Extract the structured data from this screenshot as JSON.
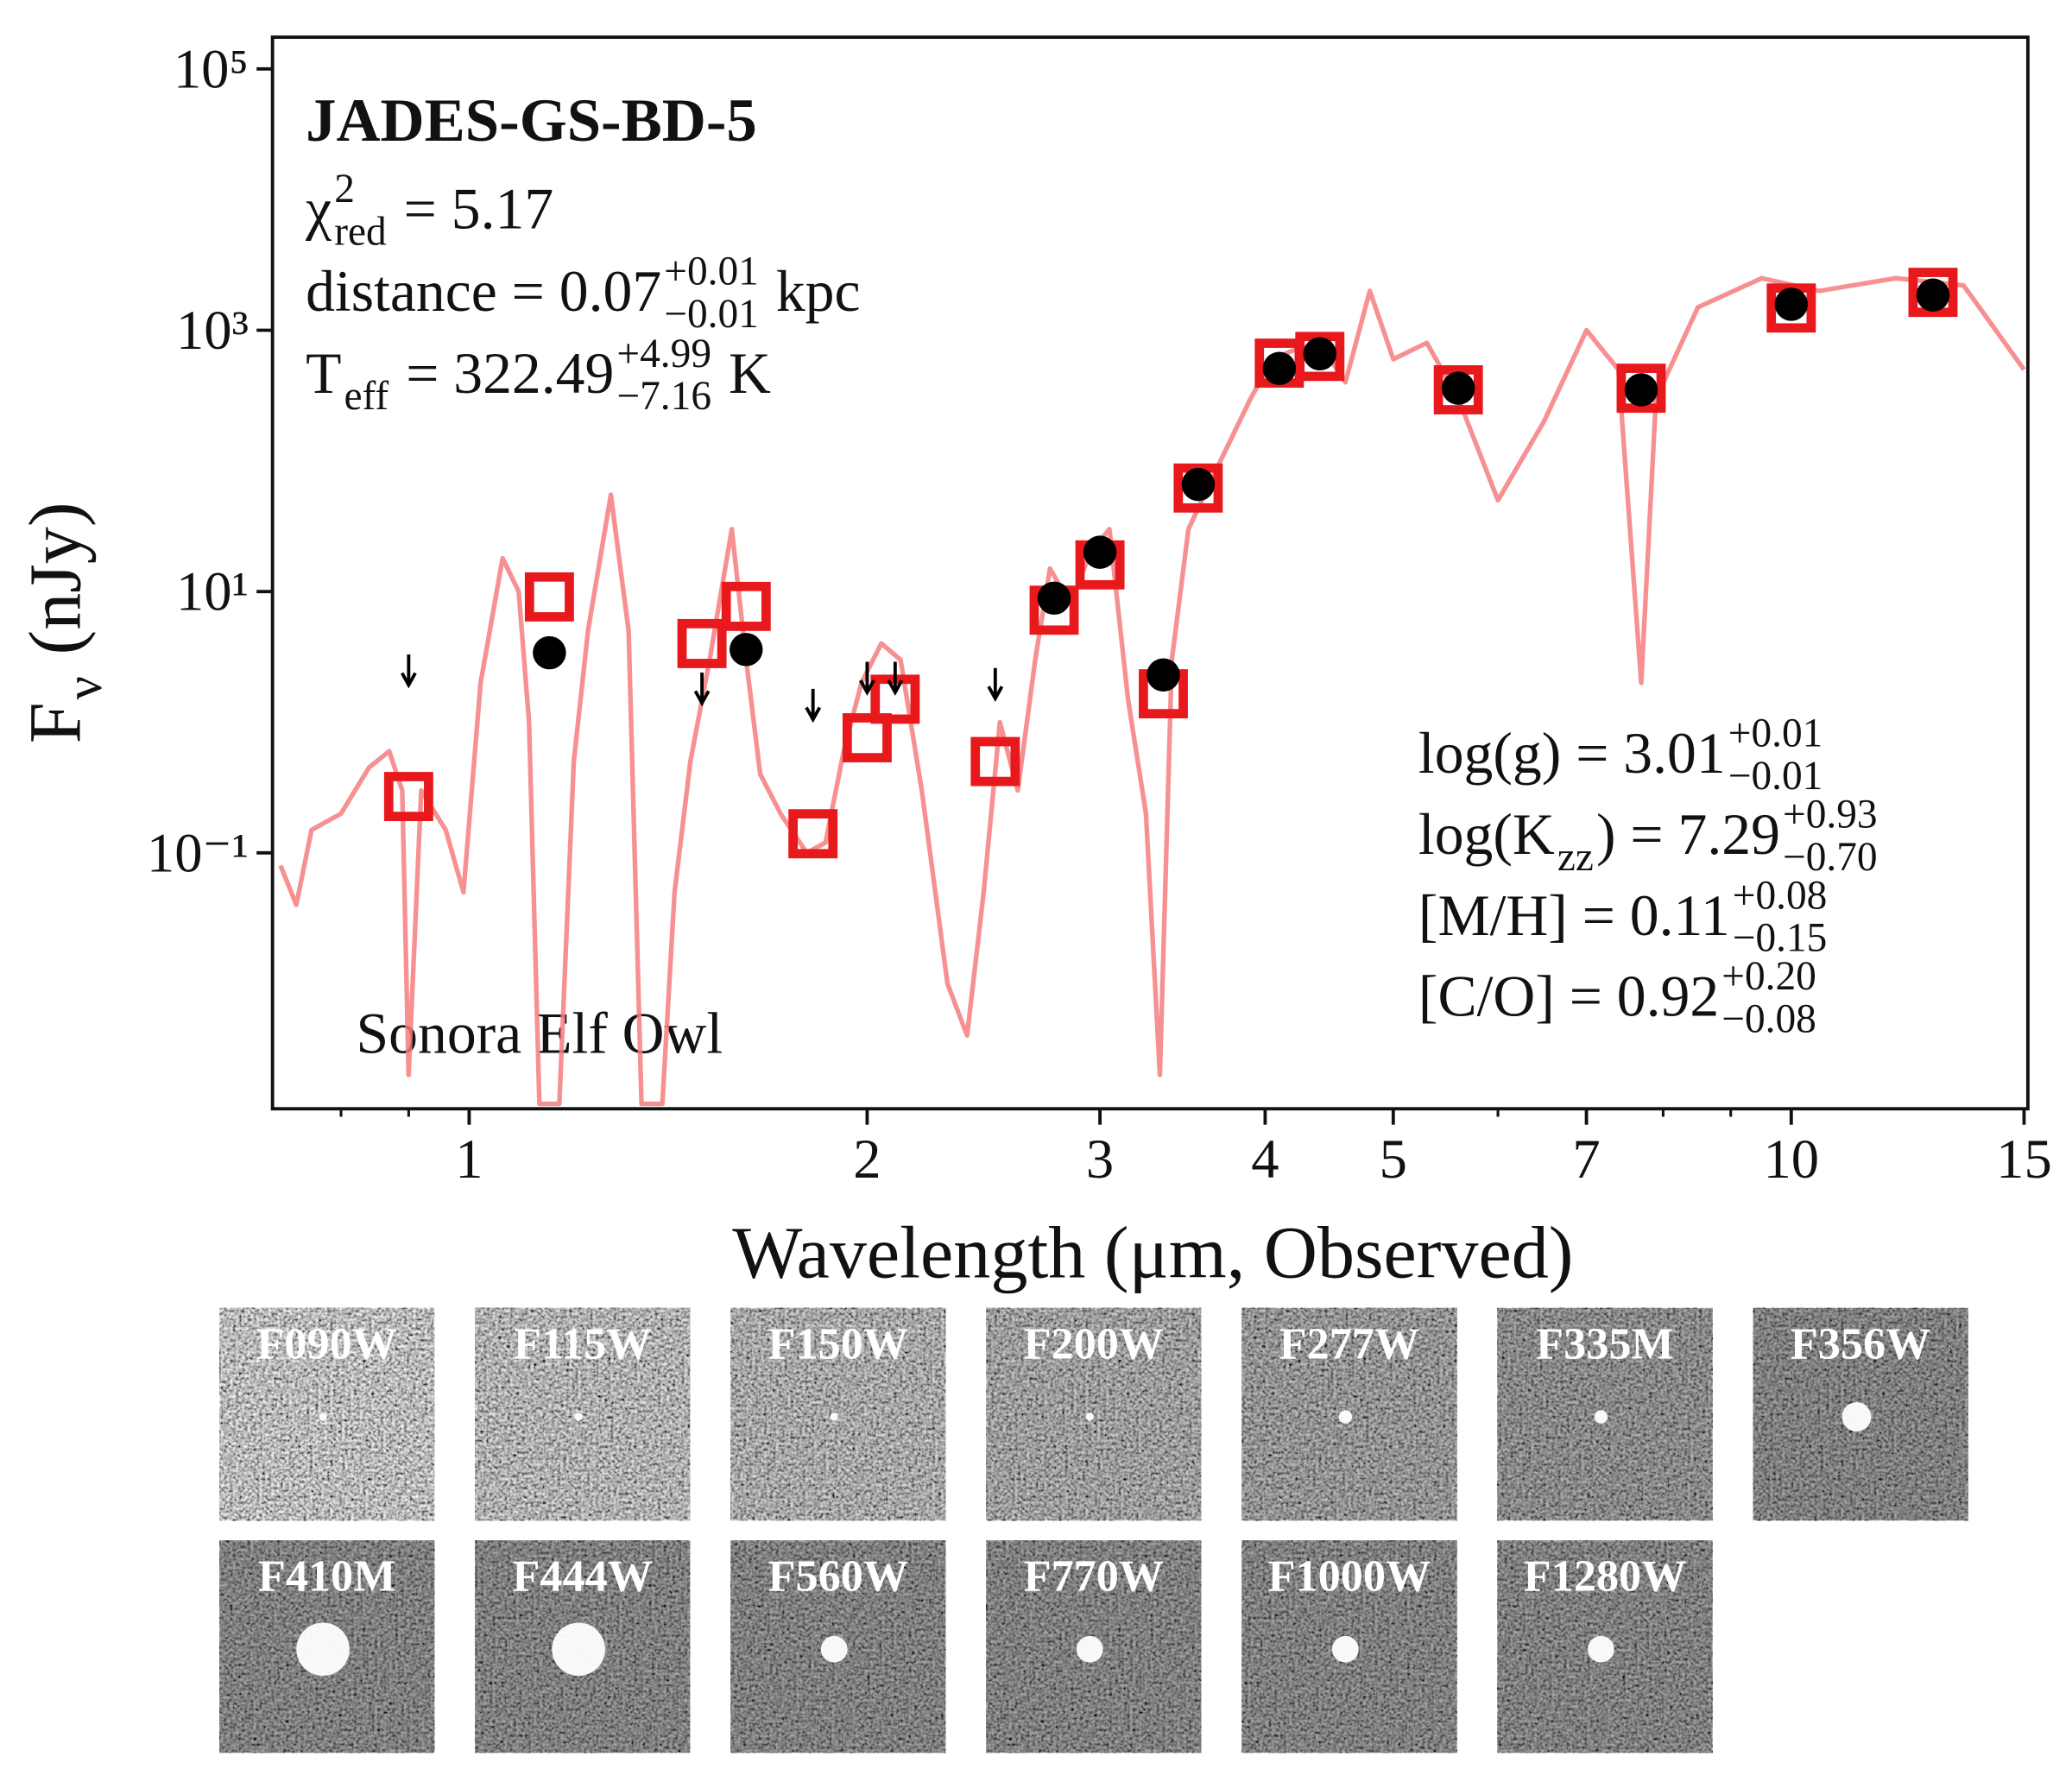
{
  "chart_data": {
    "type": "scatter",
    "xlog": true,
    "ylog": true,
    "xlim": [
      0.71,
      15.1
    ],
    "ylim": [
      0.0011,
      175000
    ],
    "xticks": [
      1,
      2,
      3,
      4,
      5,
      7,
      10,
      15
    ],
    "xminorticks": [
      0.8,
      0.9,
      6,
      8,
      9
    ],
    "yticks": [
      {
        "value": 0.1,
        "label": "10⁻¹"
      },
      {
        "value": 10,
        "label": "10¹"
      },
      {
        "value": 1000,
        "label": "10³"
      },
      {
        "value": 100000,
        "label": "10⁵"
      }
    ],
    "xlabel": "Wavelength (μm, Observed)",
    "ylabel": [
      {
        "t": "F"
      },
      {
        "sub": "ν"
      },
      {
        "t": " (nJy)"
      }
    ],
    "title": "JADES-GS-BD-5",
    "model_label": "Sonora Elf Owl",
    "annotations": [
      {
        "side": "left",
        "parts": [
          {
            "t": "χ"
          },
          {
            "sup": "2",
            "sub": "red"
          },
          {
            "t": " = 5.17"
          }
        ]
      },
      {
        "side": "left",
        "parts": [
          {
            "t": "distance = 0.07"
          },
          {
            "sup": "+0.01",
            "sub": "−0.01"
          },
          {
            "t": " kpc"
          }
        ]
      },
      {
        "side": "left",
        "parts": [
          {
            "t": "T"
          },
          {
            "sub": "eff"
          },
          {
            "t": " = 322.49"
          },
          {
            "sup": "+4.99",
            "sub": "−7.16"
          },
          {
            "t": " K"
          }
        ]
      },
      {
        "side": "right",
        "parts": [
          {
            "t": "log(g) = 3.01"
          },
          {
            "sup": "+0.01",
            "sub": "−0.01"
          }
        ]
      },
      {
        "side": "right",
        "parts": [
          {
            "t": "log(K"
          },
          {
            "sub": "zz"
          },
          {
            "t": ") = 7.29"
          },
          {
            "sup": "+0.93",
            "sub": "−0.70"
          }
        ]
      },
      {
        "side": "right",
        "parts": [
          {
            "t": "[M/H] = 0.11"
          },
          {
            "sup": "+0.08",
            "sub": "−0.15"
          }
        ]
      },
      {
        "side": "right",
        "parts": [
          {
            "t": "[C/O] = 0.92"
          },
          {
            "sup": "+0.20",
            "sub": "−0.08"
          }
        ]
      }
    ],
    "series": [
      {
        "marker": "line",
        "color": "#f47c7e",
        "x": [
          0.72,
          0.74,
          0.76,
          0.8,
          0.84,
          0.87,
          0.89,
          0.9,
          0.92,
          0.96,
          0.99,
          1.02,
          1.06,
          1.09,
          1.11,
          1.13,
          1.17,
          1.2,
          1.23,
          1.28,
          1.32,
          1.35,
          1.4,
          1.43,
          1.47,
          1.52,
          1.58,
          1.62,
          1.66,
          1.72,
          1.8,
          1.86,
          1.92,
          1.98,
          2.05,
          2.12,
          2.2,
          2.3,
          2.38,
          2.45,
          2.52,
          2.6,
          2.68,
          2.75,
          2.85,
          2.95,
          3.05,
          3.15,
          3.25,
          3.33,
          3.4,
          3.5,
          3.7,
          3.9,
          4.05,
          4.2,
          4.4,
          4.6,
          4.8,
          5.0,
          5.3,
          5.6,
          6.0,
          6.5,
          7.0,
          7.4,
          7.7,
          7.9,
          8.5,
          9.5,
          10.5,
          12,
          13.5,
          15
        ],
        "values": [
          0.08,
          0.04,
          0.15,
          0.2,
          0.45,
          0.6,
          0.3,
          0.002,
          0.3,
          0.15,
          0.05,
          2,
          18,
          10,
          1,
          0.0012,
          0.0012,
          0.5,
          5,
          55,
          5,
          0.0012,
          0.0012,
          0.05,
          0.5,
          3,
          30,
          3,
          0.4,
          0.2,
          0.1,
          0.12,
          0.6,
          2,
          4,
          3,
          0.3,
          0.01,
          0.004,
          0.05,
          1,
          0.3,
          3,
          15,
          8,
          20,
          30,
          1.5,
          0.2,
          0.002,
          3,
          30,
          100,
          300,
          600,
          700,
          800,
          400,
          2000,
          600,
          800,
          300,
          50,
          200,
          1000,
          500,
          2,
          300,
          1500,
          2500,
          2000,
          2500,
          2200,
          500
        ]
      },
      {
        "marker": "square",
        "color": "#e8191c",
        "x": [
          0.9,
          1.15,
          1.5,
          1.62,
          1.82,
          2.0,
          2.1,
          2.5,
          2.77,
          3.0,
          3.35,
          3.56,
          4.1,
          4.4,
          5.6,
          7.7,
          10.0,
          12.8
        ],
        "values": [
          0.27,
          9.1,
          4.0,
          7.7,
          0.14,
          0.76,
          1.5,
          0.5,
          7.2,
          16,
          1.65,
          62,
          560,
          630,
          350,
          360,
          1480,
          1950
        ]
      },
      {
        "marker": "circle",
        "color": "#000000",
        "x": [
          0.9,
          1.15,
          1.5,
          1.62,
          1.82,
          2.0,
          2.1,
          2.5,
          2.77,
          3.0,
          3.35,
          3.56,
          4.1,
          4.4,
          5.6,
          7.7,
          10.0,
          12.8
        ],
        "values": [
          null,
          3.4,
          null,
          3.6,
          null,
          null,
          null,
          null,
          8.9,
          20,
          2.3,
          66,
          510,
          660,
          360,
          350,
          1580,
          1860
        ]
      },
      {
        "marker": "arrow",
        "color": "#000000",
        "x": [
          0.9,
          1.5,
          1.82,
          2.0,
          2.1,
          2.5
        ],
        "values": [
          3.3,
          2.4,
          1.8,
          2.9,
          2.9,
          2.6
        ]
      }
    ]
  },
  "cutouts": [
    "F090W",
    "F115W",
    "F150W",
    "F200W",
    "F277W",
    "F335M",
    "F356W",
    "F410M",
    "F444W",
    "F560W",
    "F770W",
    "F1000W",
    "F1280W"
  ]
}
